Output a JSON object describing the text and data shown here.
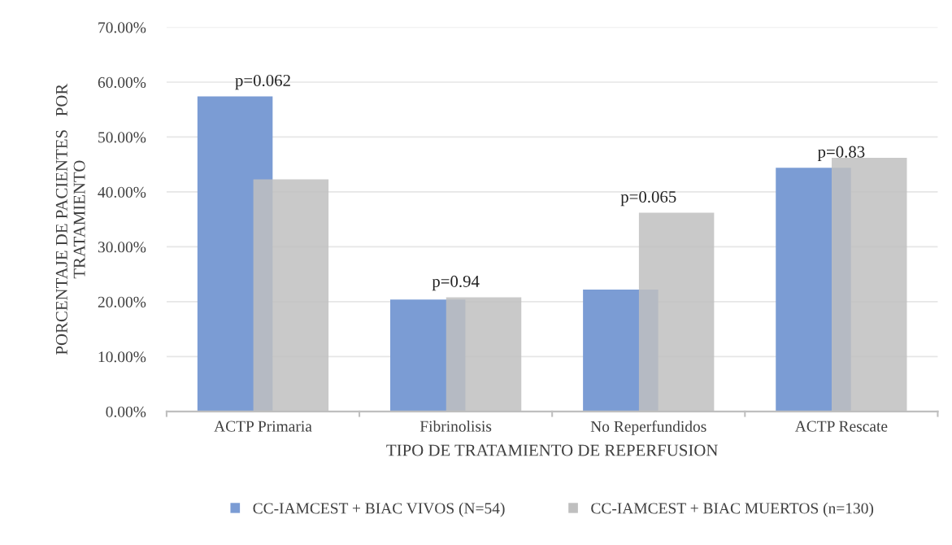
{
  "chart_data": {
    "type": "bar",
    "categories": [
      "ACTP Primaria",
      "Fibrinolisis",
      "No Reperfundidos",
      "ACTP Rescate"
    ],
    "series": [
      {
        "name": "CC-IAMCEST + BIAC VIVOS (N=54)",
        "color": "#7b9cd4",
        "values": [
          57.4,
          20.4,
          22.2,
          44.4
        ]
      },
      {
        "name": "CC-IAMCEST + BIAC MUERTOS (n=130)",
        "color": "#bfbfbf",
        "values": [
          42.3,
          20.8,
          36.2,
          46.2
        ]
      }
    ],
    "xlabel": "TIPO DE TRATAMIENTO DE REPERFUSION",
    "ylabel": "PORCENTAJE DE PACIENTES   POR\nTRATAMIENTO",
    "ylim": [
      0,
      70
    ],
    "yticks": [
      {
        "value": 0,
        "label": "0.00%"
      },
      {
        "value": 10,
        "label": "10.00%"
      },
      {
        "value": 20,
        "label": "20.00%"
      },
      {
        "value": 30,
        "label": "30.00%"
      },
      {
        "value": 40,
        "label": "40.00%"
      },
      {
        "value": 50,
        "label": "50.00%"
      },
      {
        "value": 60,
        "label": "60.00%"
      },
      {
        "value": 70,
        "label": "70.00%"
      }
    ],
    "annotations": [
      {
        "text": "p=0.062",
        "x": "ACTP Primaria",
        "y": 57.4
      },
      {
        "text": "p=0.94",
        "x": "Fibrinolisis",
        "y": 20.8
      },
      {
        "text": "p=0.065",
        "x": "No Reperfundidos",
        "y": 36.2
      },
      {
        "text": "p=0.83",
        "x": "ACTP Rescate",
        "y": 44.4
      }
    ],
    "grid": "y",
    "legend": "bottom"
  }
}
